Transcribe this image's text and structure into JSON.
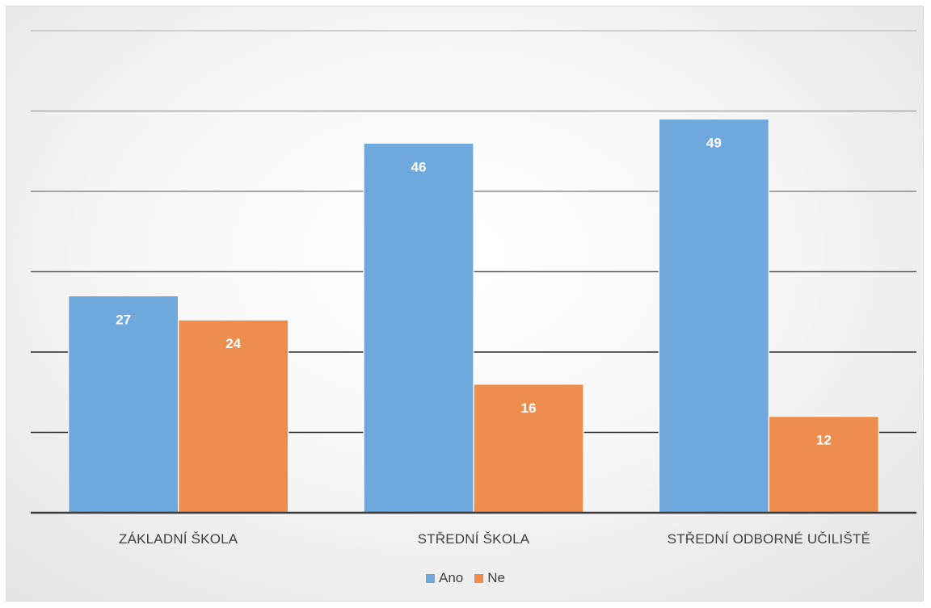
{
  "chart_data": {
    "type": "bar",
    "title": "",
    "xlabel": "",
    "ylabel": "",
    "ylim": [
      0,
      60
    ],
    "grid": true,
    "y_tick_labels_shown": false,
    "legend_position": "bottom",
    "categories": [
      "ZÁKLADNÍ ŠKOLA",
      "STŘEDNÍ ŠKOLA",
      "STŘEDNÍ ODBORNÉ UČILIŠTĚ"
    ],
    "series": [
      {
        "name": "Ano",
        "color": "#6fa8dc",
        "values": [
          27,
          46,
          49
        ]
      },
      {
        "name": "Ne",
        "color": "#ed8e4e",
        "values": [
          24,
          16,
          12
        ]
      }
    ]
  }
}
